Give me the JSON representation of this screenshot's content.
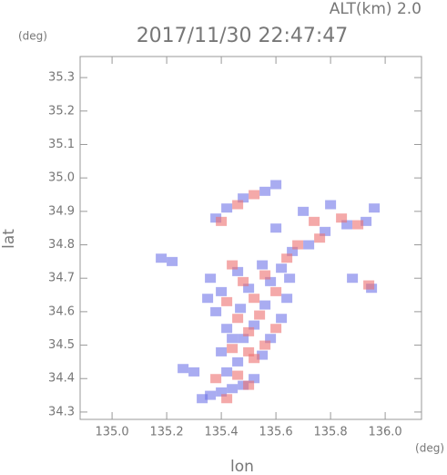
{
  "chart_data": {
    "type": "scatter",
    "title": "2017/11/30 22:47:47",
    "subtitle": "ALT(km) 2.0",
    "y_unit": "(deg)",
    "x_unit": "(deg)",
    "xlabel": "lon",
    "ylabel": "lat",
    "xlim": [
      134.883,
      136.133
    ],
    "ylim": [
      34.278,
      35.363
    ],
    "xticks": [
      {
        "value": 135,
        "label": "135.0"
      },
      135.2,
      135.4,
      135.6,
      135.8,
      {
        "value": 136,
        "label": "136.0"
      }
    ],
    "yticks": [
      34.3,
      34.4,
      34.5,
      34.6,
      34.7,
      34.8,
      34.9,
      {
        "value": 35,
        "label": "35.0"
      },
      35.1,
      35.2,
      35.3
    ],
    "series": [
      {
        "color": "#6f74e8",
        "x": [
          135.33,
          135.36,
          135.4,
          135.44,
          135.48,
          135.3,
          135.42,
          135.52,
          135.46,
          135.4,
          135.55,
          135.48,
          135.58,
          135.42,
          135.52,
          135.62,
          135.38,
          135.47,
          135.56,
          135.64,
          135.4,
          135.5,
          135.58,
          135.36,
          135.46,
          135.62,
          135.66,
          135.72,
          135.78,
          135.86,
          135.93,
          135.96,
          135.6,
          135.42,
          135.48,
          135.56,
          135.6,
          135.38,
          135.18,
          135.22,
          135.26,
          135.95,
          135.88,
          135.7,
          135.8,
          135.65,
          135.55,
          135.44,
          135.35
        ],
        "y": [
          34.34,
          34.35,
          34.36,
          34.37,
          34.38,
          34.42,
          34.42,
          34.4,
          34.45,
          34.48,
          34.47,
          34.52,
          34.52,
          34.55,
          34.56,
          34.58,
          34.6,
          34.61,
          34.62,
          34.64,
          34.66,
          34.67,
          34.69,
          34.7,
          34.72,
          34.73,
          34.78,
          34.8,
          34.84,
          34.86,
          34.87,
          34.91,
          34.85,
          34.91,
          34.94,
          34.96,
          34.98,
          34.88,
          34.76,
          34.75,
          34.43,
          34.67,
          34.7,
          34.9,
          34.92,
          34.7,
          34.74,
          34.52,
          34.64
        ]
      },
      {
        "color": "#ec6f6f",
        "x": [
          135.42,
          135.5,
          135.38,
          135.46,
          135.52,
          135.44,
          135.56,
          135.5,
          135.6,
          135.46,
          135.54,
          135.42,
          135.52,
          135.6,
          135.48,
          135.56,
          135.44,
          135.68,
          135.76,
          135.84,
          135.9,
          135.74,
          135.4,
          135.46,
          135.52,
          135.94,
          135.5,
          135.64
        ],
        "y": [
          34.34,
          34.38,
          34.4,
          34.41,
          34.46,
          34.49,
          34.5,
          34.54,
          34.55,
          34.58,
          34.59,
          34.63,
          34.64,
          34.66,
          34.69,
          34.71,
          34.74,
          34.8,
          34.82,
          34.88,
          34.86,
          34.87,
          34.87,
          34.92,
          34.95,
          34.68,
          34.48,
          34.76
        ]
      }
    ]
  }
}
